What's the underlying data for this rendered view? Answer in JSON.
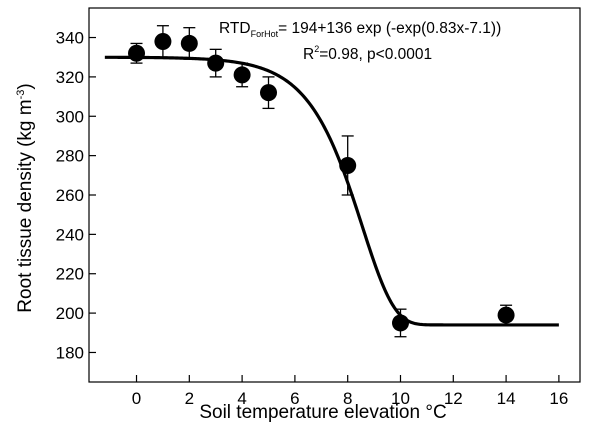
{
  "chart_data": {
    "type": "scatter",
    "title": "",
    "xlabel": "Soil temperature elevation °C",
    "ylabel": {
      "main": "Root tissue density (kg m",
      "sup": "-3",
      "close": ")"
    },
    "xlim": [
      -1.8,
      16.8
    ],
    "ylim": [
      165,
      355
    ],
    "xticks": [
      0,
      2,
      4,
      6,
      8,
      10,
      12,
      14,
      16
    ],
    "yticks": [
      180,
      200,
      220,
      240,
      260,
      280,
      300,
      320,
      340
    ],
    "grid": false,
    "legend": "none",
    "points": [
      {
        "x": 0,
        "y": 332,
        "err": 5
      },
      {
        "x": 1,
        "y": 338,
        "err": 8
      },
      {
        "x": 2,
        "y": 337,
        "err": 8
      },
      {
        "x": 3,
        "y": 327,
        "err": 7
      },
      {
        "x": 4,
        "y": 321,
        "err": 6
      },
      {
        "x": 5,
        "y": 312,
        "err": 8
      },
      {
        "x": 8,
        "y": 275,
        "err": 15
      },
      {
        "x": 10,
        "y": 195,
        "err": 7
      },
      {
        "x": 14,
        "y": 199,
        "err": 5
      }
    ],
    "fit": {
      "formula": "y = 194 + 136*exp(-exp(0.83*x - 7.1))",
      "a": 194,
      "b": 136,
      "k": 0.83,
      "c": 7.1,
      "x_range": [
        -1.2,
        16
      ]
    },
    "annotation": {
      "line1_prefix": "RTD",
      "line1_subscript": "ForHot",
      "line1_rest": "= 194+136 exp (-exp(0.83x-7.1))",
      "line2_prefix": "R",
      "line2_sup": "2",
      "line2_rest": "=0.98, p<0.0001"
    },
    "colors": {
      "marker": "#000000",
      "line": "#000000",
      "axis": "#000000"
    }
  }
}
